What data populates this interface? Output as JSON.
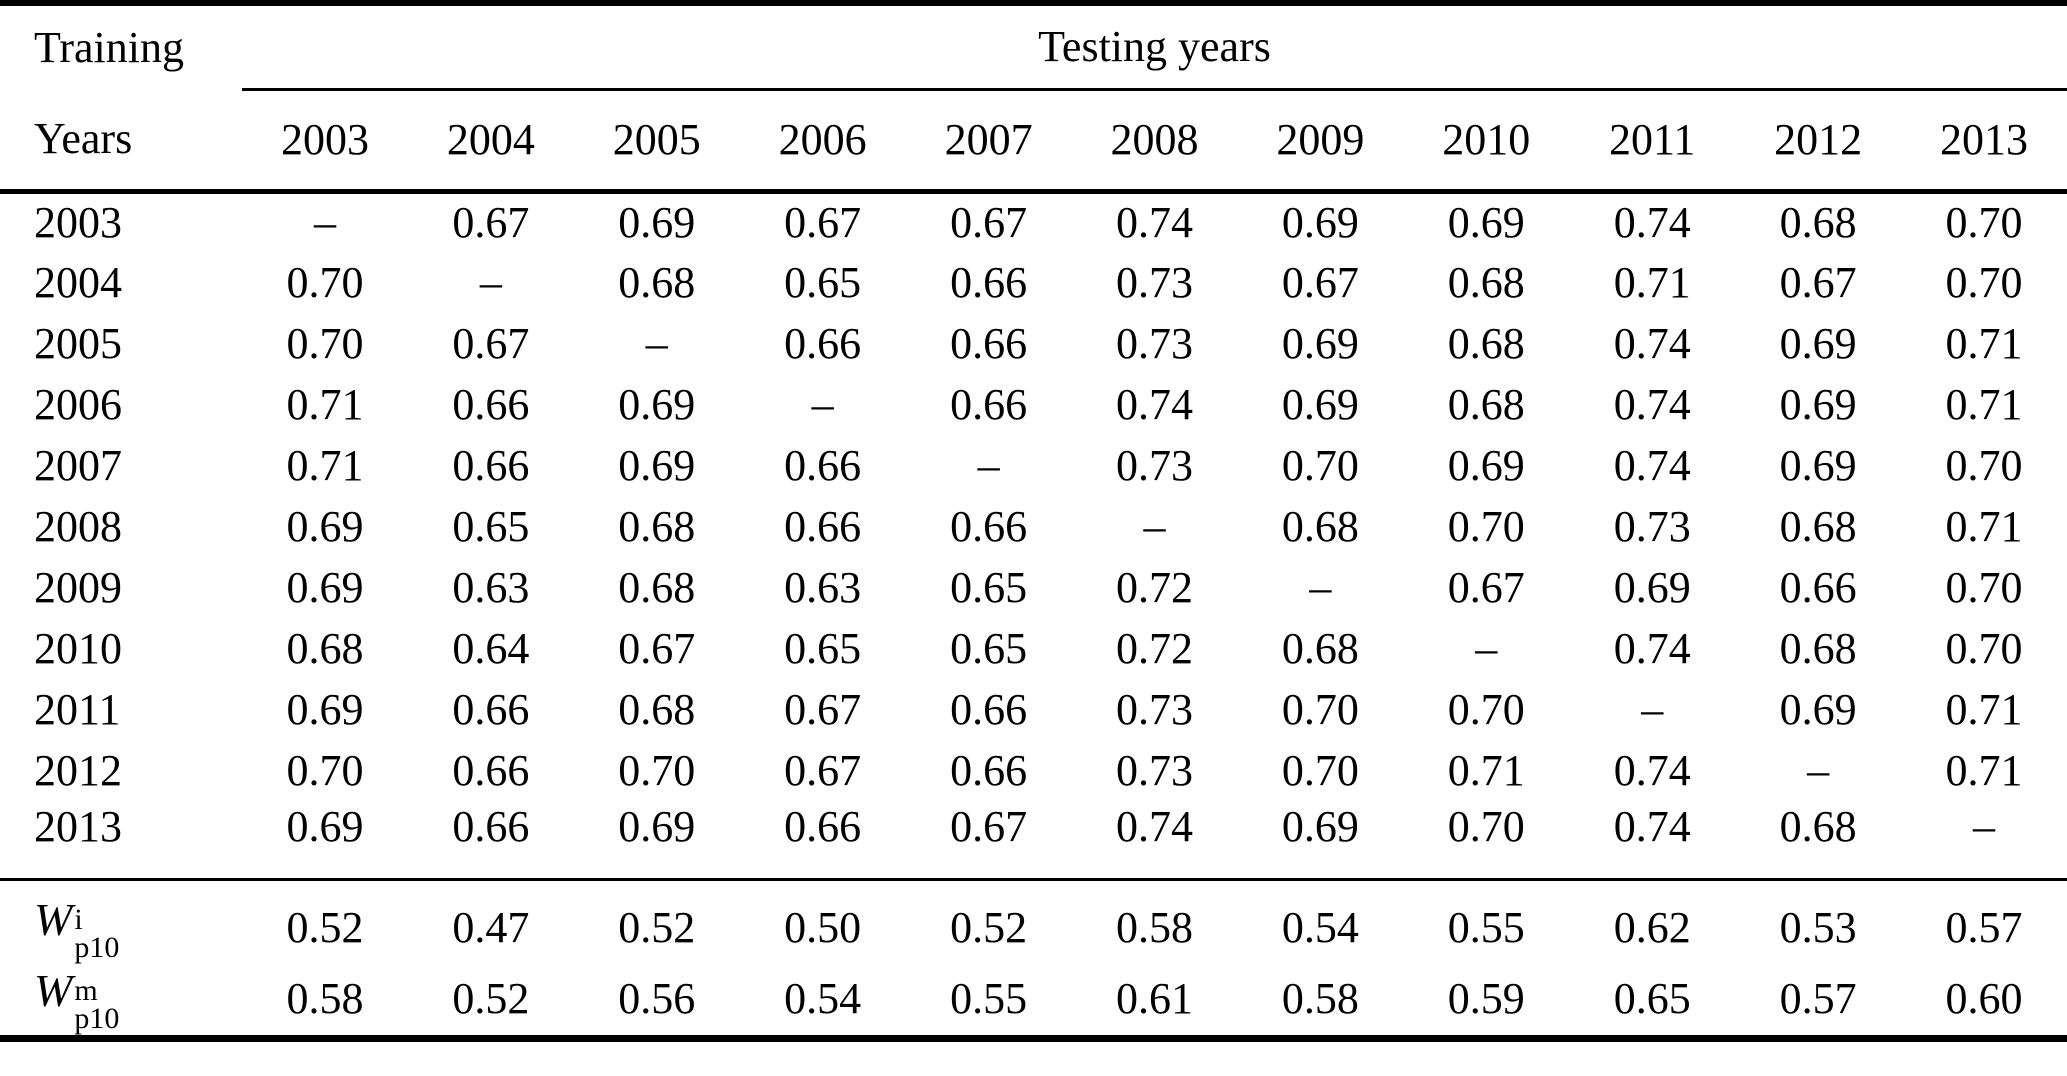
{
  "colors": {
    "background": "#ffffff",
    "text": "#000000",
    "rule": "#000000"
  },
  "table": {
    "row_header_line1": "Training",
    "row_header_line2": "Years",
    "col_group_header": "Testing years",
    "testing_years": [
      "2003",
      "2004",
      "2005",
      "2006",
      "2007",
      "2008",
      "2009",
      "2010",
      "2011",
      "2012",
      "2013"
    ],
    "dash": "–",
    "rows": [
      {
        "label": "2003",
        "values": [
          "–",
          "0.67",
          "0.69",
          "0.67",
          "0.67",
          "0.74",
          "0.69",
          "0.69",
          "0.74",
          "0.68",
          "0.70"
        ]
      },
      {
        "label": "2004",
        "values": [
          "0.70",
          "–",
          "0.68",
          "0.65",
          "0.66",
          "0.73",
          "0.67",
          "0.68",
          "0.71",
          "0.67",
          "0.70"
        ]
      },
      {
        "label": "2005",
        "values": [
          "0.70",
          "0.67",
          "–",
          "0.66",
          "0.66",
          "0.73",
          "0.69",
          "0.68",
          "0.74",
          "0.69",
          "0.71"
        ]
      },
      {
        "label": "2006",
        "values": [
          "0.71",
          "0.66",
          "0.69",
          "–",
          "0.66",
          "0.74",
          "0.69",
          "0.68",
          "0.74",
          "0.69",
          "0.71"
        ]
      },
      {
        "label": "2007",
        "values": [
          "0.71",
          "0.66",
          "0.69",
          "0.66",
          "–",
          "0.73",
          "0.70",
          "0.69",
          "0.74",
          "0.69",
          "0.70"
        ]
      },
      {
        "label": "2008",
        "values": [
          "0.69",
          "0.65",
          "0.68",
          "0.66",
          "0.66",
          "–",
          "0.68",
          "0.70",
          "0.73",
          "0.68",
          "0.71"
        ]
      },
      {
        "label": "2009",
        "values": [
          "0.69",
          "0.63",
          "0.68",
          "0.63",
          "0.65",
          "0.72",
          "–",
          "0.67",
          "0.69",
          "0.66",
          "0.70"
        ]
      },
      {
        "label": "2010",
        "values": [
          "0.68",
          "0.64",
          "0.67",
          "0.65",
          "0.65",
          "0.72",
          "0.68",
          "–",
          "0.74",
          "0.68",
          "0.70"
        ]
      },
      {
        "label": "2011",
        "values": [
          "0.69",
          "0.66",
          "0.68",
          "0.67",
          "0.66",
          "0.73",
          "0.70",
          "0.70",
          "–",
          "0.69",
          "0.71"
        ]
      },
      {
        "label": "2012",
        "values": [
          "0.70",
          "0.66",
          "0.70",
          "0.67",
          "0.66",
          "0.73",
          "0.70",
          "0.71",
          "0.74",
          "–",
          "0.71"
        ]
      },
      {
        "label": "2013",
        "values": [
          "0.69",
          "0.66",
          "0.69",
          "0.66",
          "0.67",
          "0.74",
          "0.69",
          "0.70",
          "0.74",
          "0.68",
          "–"
        ]
      }
    ],
    "summary_rows": [
      {
        "base": "W",
        "sup": "i",
        "sub": "p10",
        "values": [
          "0.52",
          "0.47",
          "0.52",
          "0.50",
          "0.52",
          "0.58",
          "0.54",
          "0.55",
          "0.62",
          "0.53",
          "0.57"
        ]
      },
      {
        "base": "W",
        "sup": "m",
        "sub": "p10",
        "values": [
          "0.58",
          "0.52",
          "0.56",
          "0.54",
          "0.55",
          "0.61",
          "0.58",
          "0.59",
          "0.65",
          "0.57",
          "0.60"
        ]
      }
    ]
  }
}
